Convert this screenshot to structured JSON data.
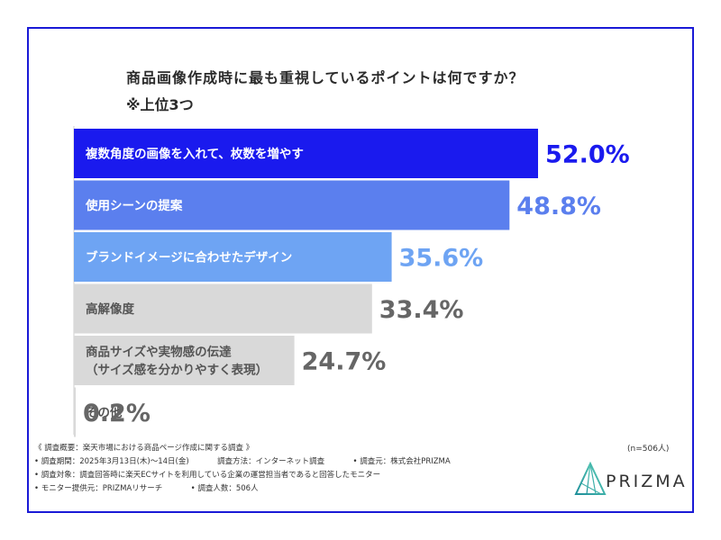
{
  "title": "商品画像作成時に最も重視しているポイントは何ですか？",
  "subtitle": "※上位3つ",
  "colors": {
    "frame": "#1a1ad6",
    "top1": "#1a1aee",
    "top2": "#5b7fee",
    "top3": "#6ea4f3",
    "other": "#d9d9d9",
    "other_text": "#555555",
    "other_value": "#666666"
  },
  "chart_data": {
    "type": "bar",
    "orientation": "horizontal",
    "title": "商品画像作成時に最も重視しているポイントは何ですか？",
    "subtitle": "※上位3つ",
    "categories": [
      "複数角度の画像を入れて、枚数を増やす",
      "使用シーンの提案",
      "ブランドイメージに合わせたデザイン",
      "高解像度",
      "商品サイズや実物感の伝達\n（サイズ感を分かりやすく表現）",
      "その他"
    ],
    "values": [
      52.0,
      48.8,
      35.6,
      33.4,
      24.7,
      0.2
    ],
    "value_labels": [
      "52.0%",
      "48.8%",
      "35.6%",
      "33.4%",
      "24.7%",
      "0.2%"
    ],
    "unit": "%",
    "xlim": [
      0,
      52.0
    ],
    "grid": false,
    "legend": "none"
  },
  "footer": {
    "survey_summary": "《 調査概要：楽天市場における商品ページ作成に関する調査 》",
    "period": "• 調査期間：2025年3月13日(木)〜14日(金)",
    "method": "調査方法：インターネット調査",
    "source": "• 調査元：株式会社PRIZMA",
    "target": "• 調査対象：調査回答時に楽天ECサイトを利用している企業の運営担当者であると回答したモニター",
    "provider": "• モニター提供元：PRIZMAリサーチ",
    "count": "• 調査人数：506人"
  },
  "sample_size": "(n=506人)",
  "logo": {
    "text": "PRIZMA",
    "icon": "prizma-logo-icon"
  }
}
